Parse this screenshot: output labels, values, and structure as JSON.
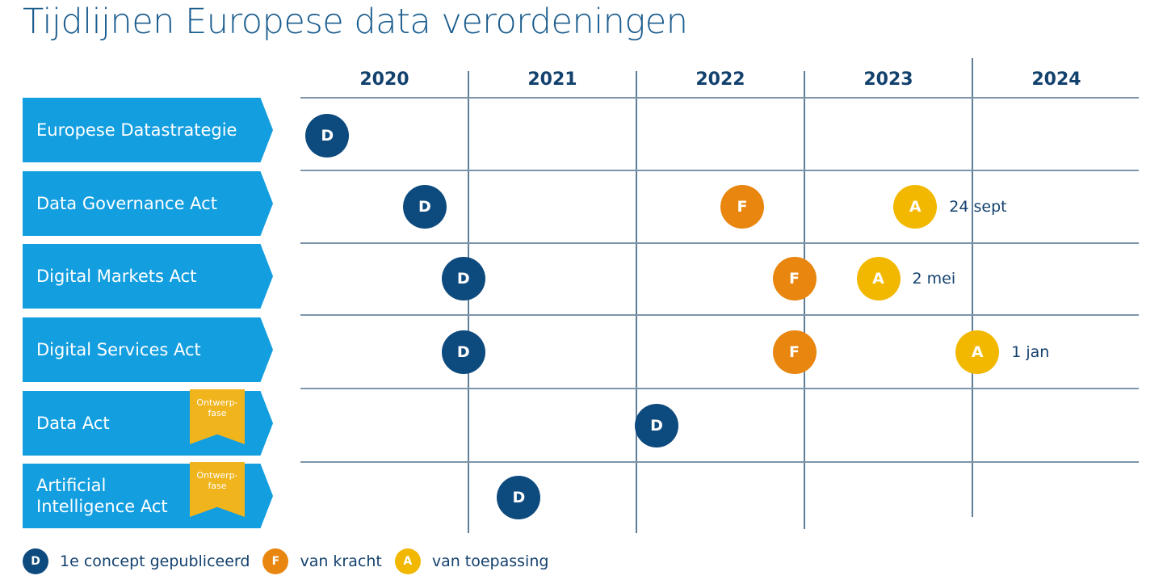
{
  "title": "Tijdlijnen Europese data verordeningen",
  "years": [
    "2020",
    "2021",
    "2022",
    "2023",
    "2024"
  ],
  "colors": {
    "D": "#0d4a7e",
    "F": "#e8860f",
    "A": "#f2b800",
    "label": "#139ee0",
    "badge": "#f0b41c"
  },
  "rows": [
    {
      "label": "Europese Datastrategie",
      "badge": null,
      "events": [
        {
          "type": "D",
          "year": 2020.16
        }
      ]
    },
    {
      "label": "Data Governance Act",
      "badge": null,
      "events": [
        {
          "type": "D",
          "year": 2020.74
        },
        {
          "type": "F",
          "year": 2022.63
        },
        {
          "type": "A",
          "year": 2023.66,
          "note": "24 sept"
        }
      ]
    },
    {
      "label": "Digital Markets Act",
      "badge": null,
      "events": [
        {
          "type": "D",
          "year": 2020.97
        },
        {
          "type": "F",
          "year": 2022.94
        },
        {
          "type": "A",
          "year": 2023.44,
          "note": "2 mei"
        }
      ]
    },
    {
      "label": "Digital Services Act",
      "badge": null,
      "events": [
        {
          "type": "D",
          "year": 2020.97
        },
        {
          "type": "F",
          "year": 2022.94
        },
        {
          "type": "A",
          "year": 2024.03,
          "note": "1 jan"
        }
      ]
    },
    {
      "label": "Data Act",
      "badge": "Ontwerp-fase",
      "events": [
        {
          "type": "D",
          "year": 2022.12
        }
      ]
    },
    {
      "label": "Artificial Intelligence Act",
      "badge": "Ontwerp-fase",
      "events": [
        {
          "type": "D",
          "year": 2021.3
        }
      ]
    }
  ],
  "legend": [
    {
      "type": "D",
      "text": "1e concept gepubliceerd"
    },
    {
      "type": "F",
      "text": "van kracht"
    },
    {
      "type": "A",
      "text": "van toepassing"
    }
  ]
}
